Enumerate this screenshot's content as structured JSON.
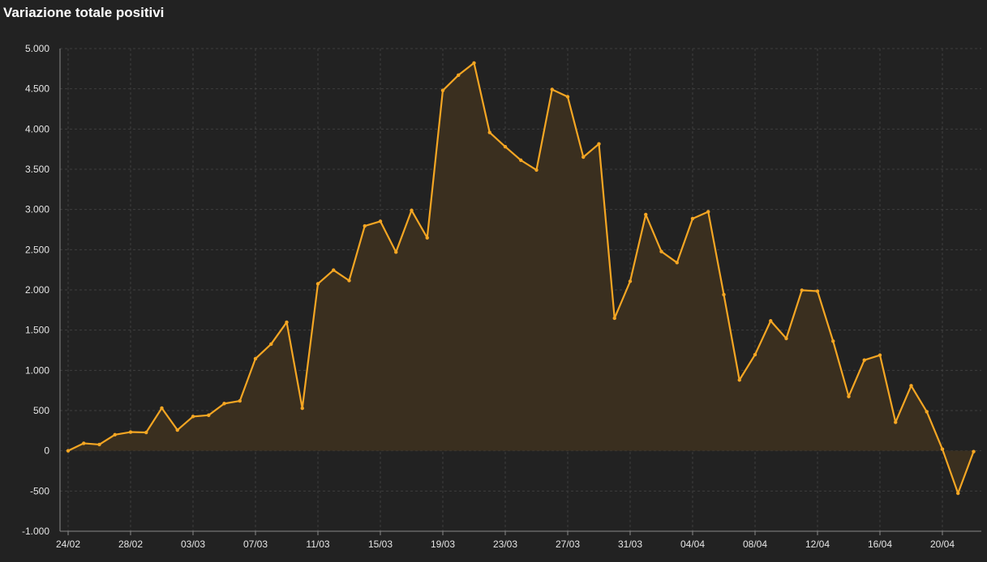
{
  "title": "Variazione totale positivi",
  "colors": {
    "background": "#222222",
    "line": "#f5a623",
    "area": "#3a2f1f",
    "grid": "#3e3e3e",
    "axis": "#8a8a8a",
    "text": "#e6e6e6"
  },
  "chart_data": {
    "type": "area",
    "title": "Variazione totale positivi",
    "xlabel": "",
    "ylabel": "",
    "ylim": [
      -1000,
      5000
    ],
    "yticks": [
      -1000,
      -500,
      0,
      500,
      1000,
      1500,
      2000,
      2500,
      3000,
      3500,
      4000,
      4500,
      5000
    ],
    "ytick_labels": [
      "-1.000",
      "-500",
      "0",
      "500",
      "1.000",
      "1.500",
      "2.000",
      "2.500",
      "3.000",
      "3.500",
      "4.000",
      "4.500",
      "5.000"
    ],
    "xtick_labels": [
      "24/02",
      "28/02",
      "03/03",
      "07/03",
      "11/03",
      "15/03",
      "19/03",
      "23/03",
      "27/03",
      "31/03",
      "04/04",
      "08/04",
      "12/04",
      "16/04",
      "20/04"
    ],
    "grid": true,
    "x": [
      "24/02",
      "25/02",
      "26/02",
      "27/02",
      "28/02",
      "29/02",
      "01/03",
      "02/03",
      "03/03",
      "04/03",
      "05/03",
      "06/03",
      "07/03",
      "08/03",
      "09/03",
      "10/03",
      "11/03",
      "12/03",
      "13/03",
      "14/03",
      "15/03",
      "16/03",
      "17/03",
      "18/03",
      "19/03",
      "20/03",
      "21/03",
      "22/03",
      "23/03",
      "24/03",
      "25/03",
      "26/03",
      "27/03",
      "28/03",
      "29/03",
      "30/03",
      "31/03",
      "01/04",
      "02/04",
      "03/04",
      "04/04",
      "05/04",
      "06/04",
      "07/04",
      "08/04",
      "09/04",
      "10/04",
      "11/04",
      "12/04",
      "13/04",
      "14/04",
      "15/04",
      "16/04",
      "17/04",
      "18/04",
      "19/04",
      "20/04",
      "21/04",
      "22/04"
    ],
    "series": [
      {
        "values": [
          0,
          93,
          78,
          200,
          233,
          228,
          531,
          258,
          426,
          442,
          587,
          620,
          1145,
          1326,
          1598,
          529,
          2076,
          2246,
          2116,
          2795,
          2853,
          2470,
          2989,
          2648,
          4480,
          4670,
          4821,
          3957,
          3780,
          3612,
          3491,
          4492,
          4401,
          3651,
          3815,
          1648,
          2107,
          2937,
          2477,
          2339,
          2886,
          2972,
          1941,
          880,
          1195,
          1615,
          1396,
          1996,
          1984,
          1363,
          675,
          1127,
          1189,
          355,
          809,
          486,
          20,
          -528,
          -10
        ]
      }
    ]
  }
}
